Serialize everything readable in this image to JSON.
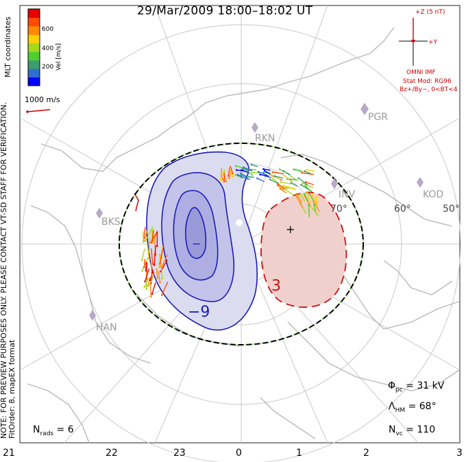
{
  "title": "29/Mar/2009  18:00–18:02  UT",
  "side_note": {
    "line1": "NOTE: FOR PREVIEW PURPOSES ONLY. PLEASE CONTACT VT-SD STAFF FOR VERIFICATION.",
    "line2": "FitOrder: 8,  mapEX format"
  },
  "coordinates_label": "MLT coordinates",
  "colorbar": {
    "title": "Vel [m/s]",
    "ticks": [
      "600",
      "400",
      "200"
    ],
    "colors": [
      "#0000ff",
      "#2f6fd0",
      "#3a9e6e",
      "#4ccf2f",
      "#a6d81c",
      "#ffd000",
      "#ff8a00",
      "#ff4a00",
      "#e60000"
    ]
  },
  "reference_vector": "1000 m/s",
  "imf": {
    "z_label": "+Z (5 nT)",
    "y_label": "+Y",
    "source": "OMNI IMF",
    "stat_mod": "Stat Mod: RG96",
    "condition": "Bz+/By−, 0<BT<4"
  },
  "stats": {
    "nrads": "N_rads  =  6",
    "phi_pc": "Φ_pc  =  31  kV",
    "lambda_hm": "Λ_HM  =  68°",
    "nvc": "N_vc  =  110"
  },
  "mlt_ticks": [
    "21",
    "22",
    "23",
    "0",
    "1",
    "2",
    "3"
  ],
  "latitude_labels": [
    "70°",
    "60°",
    "50°"
  ],
  "radar_sites": [
    "RKN",
    "PGR",
    "KOD",
    "INV",
    "BKS",
    "HAN"
  ],
  "contour_labels": {
    "negative_min": "−",
    "negative_value": "−9",
    "positive_max": "+",
    "positive_value": "3"
  },
  "colors": {
    "contour_negative": "#1a1ab8",
    "contour_positive": "#cc1111",
    "fill_negative": "#dcdcf0",
    "fill_positive": "#f0d0cc",
    "grid": "#c8c8c8",
    "coast": "#b8b8b8",
    "hmb": "#000000",
    "hmb_dash": "#66cc33",
    "text_red": "#cc0000"
  }
}
